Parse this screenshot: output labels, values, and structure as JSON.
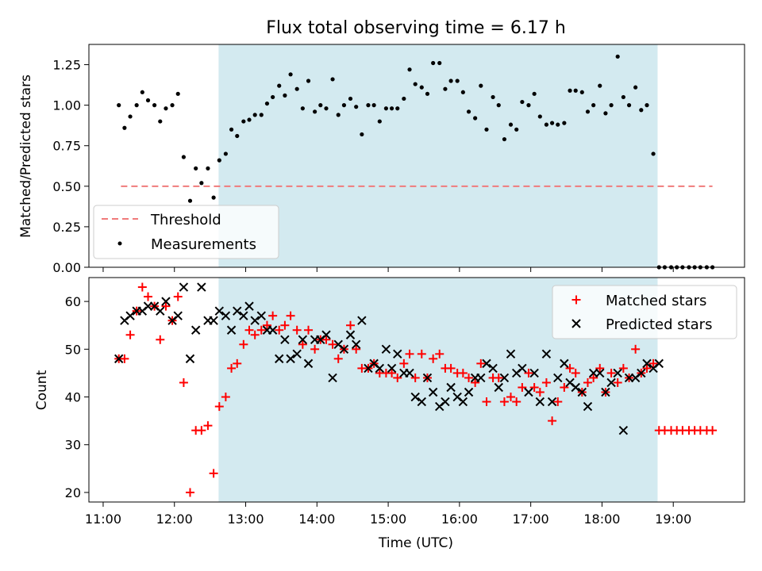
{
  "colors": {
    "observing_window": "#d3eaf0",
    "threshold": "#f07b7b",
    "measurement": "#000000",
    "matched": "#ff0000",
    "predicted": "#000000"
  },
  "chart_data": [
    {
      "type": "scatter",
      "title": "Flux total observing time = 6.17 h",
      "xlabel": "",
      "ylabel": "Matched/Predicted stars",
      "x_unit": "hours UTC",
      "xlim": [
        10.8,
        20.0
      ],
      "ylim": [
        0,
        1.375
      ],
      "yticks": [
        0.0,
        0.25,
        0.5,
        0.75,
        1.0,
        1.25
      ],
      "ytick_labels": [
        "0.00",
        "0.25",
        "0.50",
        "0.75",
        "1.00",
        "1.25"
      ],
      "observing_window": [
        12.62,
        18.78
      ],
      "threshold": {
        "name": "Threshold",
        "y": 0.5,
        "x_range": [
          11.25,
          19.55
        ]
      },
      "legend": {
        "position": "lower-left",
        "entries": [
          "Threshold",
          "Measurements"
        ]
      },
      "series": [
        {
          "name": "Measurements",
          "marker": "dot",
          "x": [
            11.22,
            11.3,
            11.38,
            11.47,
            11.55,
            11.63,
            11.72,
            11.8,
            11.88,
            11.97,
            12.05,
            12.13,
            12.22,
            12.3,
            12.38,
            12.47,
            12.55,
            12.63,
            12.72,
            12.8,
            12.88,
            12.97,
            13.05,
            13.13,
            13.22,
            13.3,
            13.38,
            13.47,
            13.55,
            13.63,
            13.72,
            13.8,
            13.88,
            13.97,
            14.05,
            14.13,
            14.22,
            14.3,
            14.38,
            14.47,
            14.55,
            14.63,
            14.72,
            14.8,
            14.88,
            14.97,
            15.05,
            15.13,
            15.22,
            15.3,
            15.38,
            15.47,
            15.55,
            15.63,
            15.72,
            15.8,
            15.88,
            15.97,
            16.05,
            16.13,
            16.22,
            16.3,
            16.38,
            16.47,
            16.55,
            16.63,
            16.72,
            16.8,
            16.88,
            16.97,
            17.05,
            17.13,
            17.22,
            17.3,
            17.38,
            17.47,
            17.55,
            17.63,
            17.72,
            17.8,
            17.88,
            17.97,
            18.05,
            18.13,
            18.22,
            18.3,
            18.38,
            18.47,
            18.55,
            18.63,
            18.72,
            18.8,
            18.88,
            18.97,
            19.05,
            19.13,
            19.22,
            19.3,
            19.38,
            19.47,
            19.55
          ],
          "y": [
            1.0,
            0.86,
            0.93,
            1.0,
            1.08,
            1.03,
            1.0,
            0.9,
            0.98,
            1.0,
            1.07,
            0.68,
            0.41,
            0.61,
            0.52,
            0.61,
            0.43,
            0.66,
            0.7,
            0.85,
            0.81,
            0.9,
            0.91,
            0.94,
            0.94,
            1.01,
            1.05,
            1.12,
            1.06,
            1.19,
            1.1,
            0.98,
            1.15,
            0.96,
            1.0,
            0.98,
            1.16,
            0.94,
            1.0,
            1.04,
            0.99,
            0.82,
            1.0,
            1.0,
            0.9,
            0.98,
            0.98,
            0.98,
            1.04,
            1.22,
            1.13,
            1.11,
            1.07,
            1.26,
            1.26,
            1.1,
            1.15,
            1.15,
            1.08,
            0.96,
            0.92,
            1.12,
            0.85,
            1.05,
            1.0,
            0.79,
            0.88,
            0.85,
            1.02,
            1.0,
            1.07,
            0.93,
            0.88,
            0.89,
            0.88,
            0.89,
            1.09,
            1.09,
            1.08,
            0.96,
            1.0,
            1.12,
            0.95,
            1.0,
            1.3,
            1.05,
            1.0,
            1.11,
            0.97,
            1.0,
            0.7,
            0.0,
            0.0,
            0.0,
            0.0,
            0.0,
            0.0,
            0.0,
            0.0,
            0.0,
            0.0
          ]
        }
      ]
    },
    {
      "type": "scatter",
      "title": "",
      "xlabel": "Time (UTC)",
      "ylabel": "Count",
      "x_unit": "hours UTC",
      "xlim": [
        10.8,
        20.0
      ],
      "ylim": [
        18,
        65
      ],
      "xticks": [
        11,
        12,
        13,
        14,
        15,
        16,
        17,
        18,
        19
      ],
      "xtick_labels": [
        "11:00",
        "12:00",
        "13:00",
        "14:00",
        "15:00",
        "16:00",
        "17:00",
        "18:00",
        "19:00"
      ],
      "yticks": [
        20,
        30,
        40,
        50,
        60
      ],
      "ytick_labels": [
        "20",
        "30",
        "40",
        "50",
        "60"
      ],
      "observing_window": [
        12.62,
        18.78
      ],
      "legend": {
        "position": "upper-right",
        "entries": [
          "Matched stars",
          "Predicted stars"
        ]
      },
      "series": [
        {
          "name": "Matched stars",
          "marker": "plus",
          "x": [
            11.22,
            11.3,
            11.38,
            11.47,
            11.55,
            11.63,
            11.72,
            11.8,
            11.88,
            11.97,
            12.05,
            12.13,
            12.22,
            12.3,
            12.38,
            12.47,
            12.55,
            12.63,
            12.72,
            12.8,
            12.88,
            12.97,
            13.05,
            13.13,
            13.22,
            13.3,
            13.38,
            13.47,
            13.55,
            13.63,
            13.72,
            13.8,
            13.88,
            13.97,
            14.05,
            14.13,
            14.22,
            14.3,
            14.38,
            14.47,
            14.55,
            14.63,
            14.72,
            14.8,
            14.88,
            14.97,
            15.05,
            15.13,
            15.22,
            15.3,
            15.38,
            15.47,
            15.55,
            15.63,
            15.72,
            15.8,
            15.88,
            15.97,
            16.05,
            16.13,
            16.22,
            16.3,
            16.38,
            16.47,
            16.55,
            16.63,
            16.72,
            16.8,
            16.88,
            16.97,
            17.05,
            17.13,
            17.22,
            17.3,
            17.38,
            17.47,
            17.55,
            17.63,
            17.72,
            17.8,
            17.88,
            17.97,
            18.05,
            18.13,
            18.22,
            18.3,
            18.38,
            18.47,
            18.55,
            18.63,
            18.72,
            18.8,
            18.88,
            18.97,
            19.05,
            19.13,
            19.22,
            19.3,
            19.38,
            19.47,
            19.55
          ],
          "y": [
            48,
            48,
            53,
            58,
            63,
            61,
            59,
            52,
            59,
            56,
            61,
            43,
            20,
            33,
            33,
            34,
            24,
            38,
            40,
            46,
            47,
            51,
            54,
            53,
            54,
            55,
            57,
            54,
            55,
            57,
            54,
            51,
            54,
            50,
            52,
            52,
            51,
            48,
            50,
            55,
            50,
            46,
            46,
            47,
            45,
            45,
            45,
            44,
            47,
            49,
            44,
            49,
            44,
            48,
            49,
            46,
            46,
            45,
            45,
            44,
            43,
            47,
            39,
            44,
            44,
            39,
            40,
            39,
            42,
            45,
            42,
            41,
            43,
            35,
            39,
            42,
            46,
            45,
            41,
            43,
            44,
            46,
            41,
            45,
            43,
            46,
            44,
            50,
            45,
            46,
            47,
            33,
            33,
            33,
            33,
            33,
            33,
            33,
            33,
            33,
            33
          ]
        },
        {
          "name": "Predicted stars",
          "marker": "x",
          "x": [
            11.22,
            11.3,
            11.38,
            11.47,
            11.55,
            11.63,
            11.72,
            11.8,
            11.88,
            11.97,
            12.05,
            12.13,
            12.22,
            12.3,
            12.38,
            12.47,
            12.55,
            12.63,
            12.72,
            12.8,
            12.88,
            12.97,
            13.05,
            13.13,
            13.22,
            13.3,
            13.38,
            13.47,
            13.55,
            13.63,
            13.72,
            13.8,
            13.88,
            13.97,
            14.05,
            14.13,
            14.22,
            14.3,
            14.38,
            14.47,
            14.55,
            14.63,
            14.72,
            14.8,
            14.88,
            14.97,
            15.05,
            15.13,
            15.22,
            15.3,
            15.38,
            15.47,
            15.55,
            15.63,
            15.72,
            15.8,
            15.88,
            15.97,
            16.05,
            16.13,
            16.22,
            16.3,
            16.38,
            16.47,
            16.55,
            16.63,
            16.72,
            16.8,
            16.88,
            16.97,
            17.05,
            17.13,
            17.22,
            17.3,
            17.38,
            17.47,
            17.55,
            17.63,
            17.72,
            17.8,
            17.88,
            17.97,
            18.05,
            18.13,
            18.22,
            18.3,
            18.38,
            18.47,
            18.55,
            18.63,
            18.72,
            18.8
          ],
          "y": [
            48,
            56,
            57,
            58,
            58,
            59,
            59,
            58,
            60,
            56,
            57,
            63,
            48,
            54,
            63,
            56,
            56,
            58,
            57,
            54,
            58,
            57,
            59,
            56,
            57,
            54,
            54,
            48,
            52,
            48,
            49,
            52,
            47,
            52,
            52,
            53,
            44,
            51,
            50,
            53,
            51,
            56,
            46,
            47,
            46,
            50,
            46,
            49,
            45,
            45,
            40,
            39,
            44,
            41,
            38,
            39,
            42,
            40,
            39,
            41,
            44,
            44,
            47,
            46,
            42,
            44,
            49,
            45,
            46,
            41,
            45,
            39,
            49,
            39,
            44,
            47,
            43,
            42,
            41,
            38,
            45,
            45,
            41,
            43,
            45,
            33,
            44,
            44,
            45,
            47,
            46,
            47
          ]
        }
      ]
    }
  ]
}
